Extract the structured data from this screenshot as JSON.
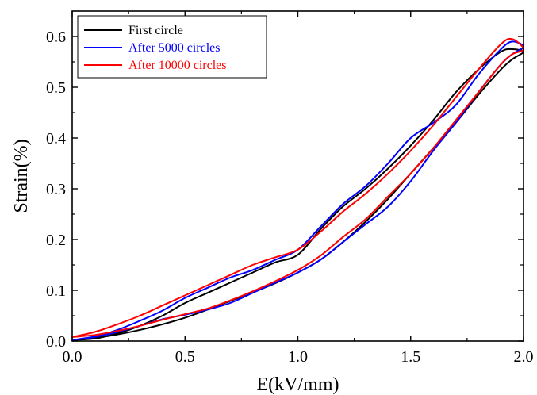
{
  "chart_data": {
    "type": "line",
    "title": "",
    "xlabel": "E(kV/mm)",
    "ylabel": "Strain(%)",
    "xlim": [
      0.0,
      2.0
    ],
    "ylim": [
      0.0,
      0.65
    ],
    "xticks": [
      "0.0",
      "0.5",
      "1.0",
      "1.5",
      "2.0"
    ],
    "yticks": [
      "0.0",
      "0.1",
      "0.2",
      "0.3",
      "0.4",
      "0.5",
      "0.6"
    ],
    "x_tick_values": [
      0.0,
      0.5,
      1.0,
      1.5,
      2.0
    ],
    "y_tick_values": [
      0.0,
      0.1,
      0.2,
      0.3,
      0.4,
      0.5,
      0.6
    ],
    "grid": false,
    "legend_position": "top-left",
    "series": [
      {
        "name": "First circle",
        "color": "#000000",
        "x": [
          0.0,
          0.1,
          0.2,
          0.3,
          0.4,
          0.5,
          0.6,
          0.7,
          0.8,
          0.9,
          1.0,
          1.1,
          1.2,
          1.3,
          1.4,
          1.5,
          1.6,
          1.7,
          1.8,
          1.9,
          1.95,
          2.0,
          1.95,
          1.9,
          1.8,
          1.7,
          1.6,
          1.5,
          1.4,
          1.3,
          1.2,
          1.1,
          1.0,
          0.9,
          0.8,
          0.7,
          0.6,
          0.5,
          0.4,
          0.3,
          0.2,
          0.1,
          0.0
        ],
        "y": [
          0.002,
          0.006,
          0.013,
          0.022,
          0.033,
          0.046,
          0.062,
          0.079,
          0.096,
          0.114,
          0.135,
          0.16,
          0.195,
          0.235,
          0.28,
          0.33,
          0.38,
          0.43,
          0.485,
          0.535,
          0.555,
          0.57,
          0.575,
          0.57,
          0.535,
          0.49,
          0.435,
          0.385,
          0.34,
          0.3,
          0.265,
          0.22,
          0.17,
          0.155,
          0.135,
          0.115,
          0.095,
          0.075,
          0.05,
          0.03,
          0.015,
          0.005,
          0.002
        ]
      },
      {
        "name": "After 5000 circles",
        "color": "#0000ff",
        "x": [
          0.0,
          0.1,
          0.2,
          0.3,
          0.4,
          0.5,
          0.6,
          0.7,
          0.8,
          0.9,
          1.0,
          1.1,
          1.2,
          1.3,
          1.4,
          1.5,
          1.6,
          1.7,
          1.8,
          1.9,
          1.95,
          2.0,
          1.95,
          1.9,
          1.8,
          1.7,
          1.6,
          1.5,
          1.4,
          1.3,
          1.2,
          1.1,
          1.0,
          0.9,
          0.8,
          0.7,
          0.6,
          0.5,
          0.4,
          0.3,
          0.2,
          0.1,
          0.0
        ],
        "y": [
          0.002,
          0.008,
          0.018,
          0.03,
          0.043,
          0.052,
          0.062,
          0.075,
          0.095,
          0.115,
          0.135,
          0.16,
          0.195,
          0.23,
          0.265,
          0.315,
          0.375,
          0.43,
          0.49,
          0.545,
          0.565,
          0.58,
          0.59,
          0.575,
          0.525,
          0.465,
          0.43,
          0.4,
          0.35,
          0.305,
          0.27,
          0.225,
          0.18,
          0.16,
          0.14,
          0.125,
          0.105,
          0.085,
          0.06,
          0.04,
          0.022,
          0.009,
          0.002
        ]
      },
      {
        "name": "After 10000 circles",
        "color": "#ff0000",
        "x": [
          0.0,
          0.1,
          0.2,
          0.3,
          0.4,
          0.5,
          0.6,
          0.7,
          0.8,
          0.9,
          1.0,
          1.1,
          1.2,
          1.3,
          1.4,
          1.5,
          1.6,
          1.7,
          1.8,
          1.9,
          1.95,
          2.0,
          1.95,
          1.9,
          1.8,
          1.7,
          1.6,
          1.5,
          1.4,
          1.3,
          1.2,
          1.1,
          1.0,
          0.9,
          0.8,
          0.7,
          0.6,
          0.5,
          0.4,
          0.3,
          0.2,
          0.1,
          0.0
        ],
        "y": [
          0.008,
          0.012,
          0.02,
          0.03,
          0.042,
          0.053,
          0.064,
          0.08,
          0.098,
          0.118,
          0.14,
          0.168,
          0.205,
          0.24,
          0.285,
          0.33,
          0.38,
          0.435,
          0.49,
          0.545,
          0.565,
          0.575,
          0.595,
          0.585,
          0.535,
          0.48,
          0.425,
          0.375,
          0.33,
          0.29,
          0.255,
          0.215,
          0.18,
          0.165,
          0.15,
          0.13,
          0.11,
          0.09,
          0.07,
          0.05,
          0.033,
          0.018,
          0.008
        ]
      }
    ]
  }
}
